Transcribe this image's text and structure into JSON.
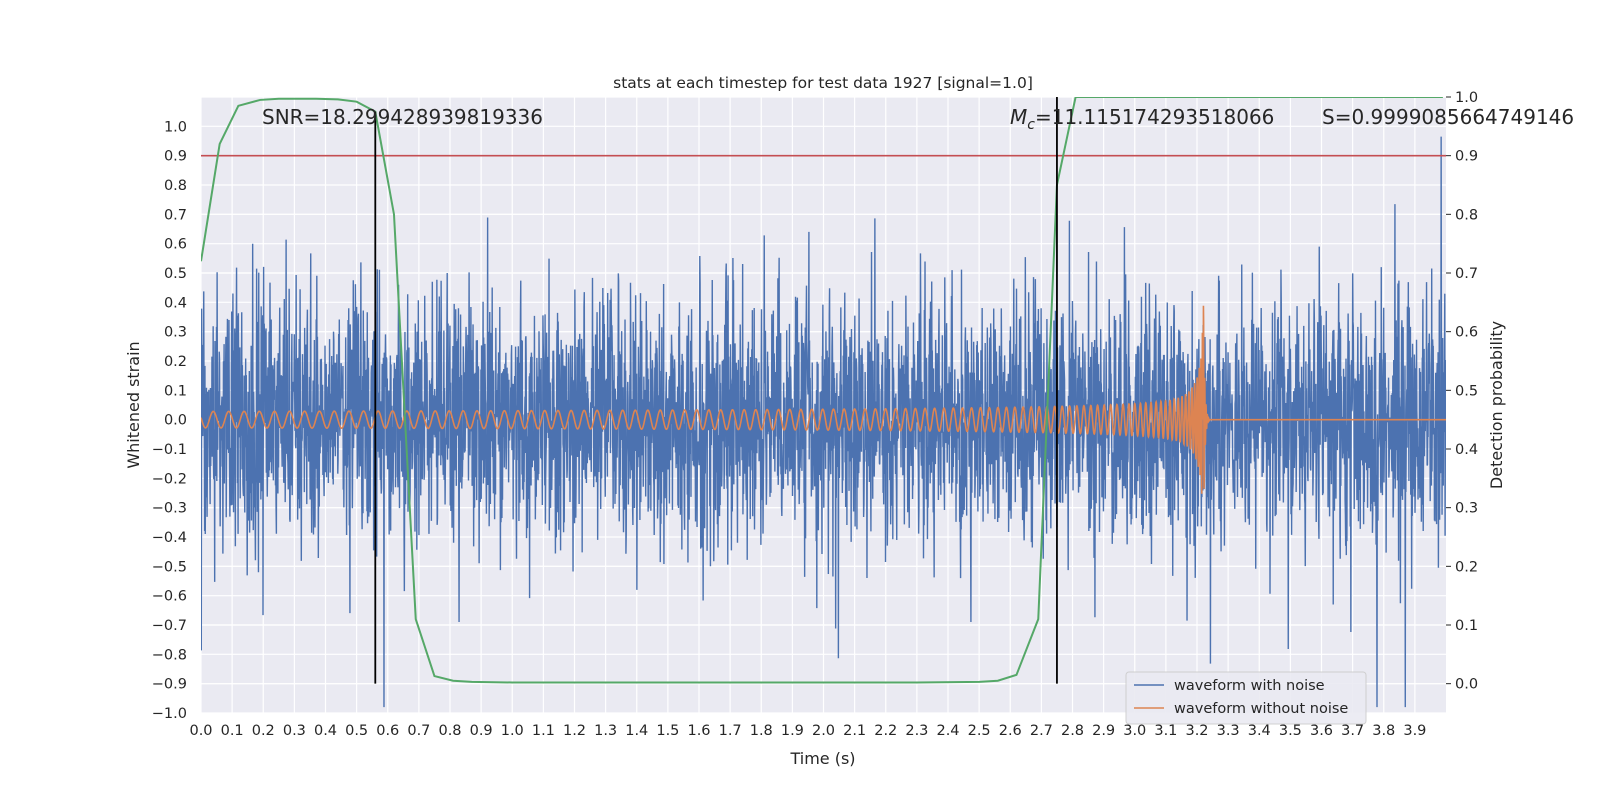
{
  "chart_data": {
    "type": "line",
    "title": "stats at each timestep for test data 1927 [signal=1.0]",
    "xlabel": "Time (s)",
    "ylabel": "Whitened strain",
    "ylabel_right": "Detection probability",
    "xlim": [
      0.0,
      4.0
    ],
    "ylim": [
      -1.0,
      1.1
    ],
    "ylim_right": [
      -0.05,
      1.0
    ],
    "x_ticks": [
      "0.0",
      "0.1",
      "0.2",
      "0.3",
      "0.4",
      "0.5",
      "0.6",
      "0.7",
      "0.8",
      "0.9",
      "1.0",
      "1.1",
      "1.2",
      "1.3",
      "1.4",
      "1.5",
      "1.6",
      "1.7",
      "1.8",
      "1.9",
      "2.0",
      "2.1",
      "2.2",
      "2.3",
      "2.4",
      "2.5",
      "2.6",
      "2.7",
      "2.8",
      "2.9",
      "3.0",
      "3.1",
      "3.2",
      "3.3",
      "3.4",
      "3.5",
      "3.6",
      "3.7",
      "3.8",
      "3.9"
    ],
    "y_ticks": [
      "−1.0",
      "−0.9",
      "−0.8",
      "−0.7",
      "−0.6",
      "−0.5",
      "−0.4",
      "−0.3",
      "−0.2",
      "−0.1",
      "0.0",
      "0.1",
      "0.2",
      "0.3",
      "0.4",
      "0.5",
      "0.6",
      "0.7",
      "0.8",
      "0.9",
      "1.0"
    ],
    "y_ticks_right": [
      "0.0",
      "0.1",
      "0.2",
      "0.3",
      "0.4",
      "0.5",
      "0.6",
      "0.7",
      "0.8",
      "0.9",
      "1.0"
    ],
    "annotations": {
      "snr": "SNR=18.299428939819336",
      "mc_symbol": "M",
      "mc_sub": "c",
      "mc_value": "=11.115174293518066",
      "s": "S=0.9999085664749146"
    },
    "grid": true,
    "legend_position": "bottom-right",
    "series": [
      {
        "name": "waveform with noise",
        "color": "#4c72b0",
        "axis": "left",
        "kind": "noisy-strain"
      },
      {
        "name": "waveform without noise",
        "color": "#dd8452",
        "axis": "left",
        "kind": "chirp",
        "merger_time": 3.22,
        "peak_amplitude": 0.53
      },
      {
        "axis": "right",
        "color": "#55a868",
        "x": [
          0.0,
          0.06,
          0.12,
          0.19,
          0.25,
          0.31,
          0.37,
          0.44,
          0.5,
          0.56,
          0.62,
          0.69,
          0.75,
          0.81,
          0.87,
          1.0,
          1.5,
          2.0,
          2.3,
          2.5,
          2.56,
          2.62,
          2.69,
          2.75,
          2.81,
          3.0,
          3.5,
          3.99
        ],
        "y": [
          0.72,
          0.92,
          0.985,
          0.995,
          0.997,
          0.997,
          0.997,
          0.996,
          0.992,
          0.975,
          0.8,
          0.11,
          0.013,
          0.005,
          0.003,
          0.002,
          0.002,
          0.002,
          0.002,
          0.003,
          0.005,
          0.015,
          0.11,
          0.85,
          1.0,
          1.0,
          1.0,
          1.0
        ]
      }
    ],
    "vertical_lines": [
      {
        "x": 0.56,
        "color": "#000000",
        "ymin_right": 0.0,
        "ymax_right": 0.975
      },
      {
        "x": 2.75,
        "color": "#000000",
        "ymin_right": 0.0,
        "ymax_right": 1.0
      }
    ],
    "horizontal_lines": [
      {
        "y_right": 0.9,
        "color": "#c44e52"
      }
    ]
  }
}
